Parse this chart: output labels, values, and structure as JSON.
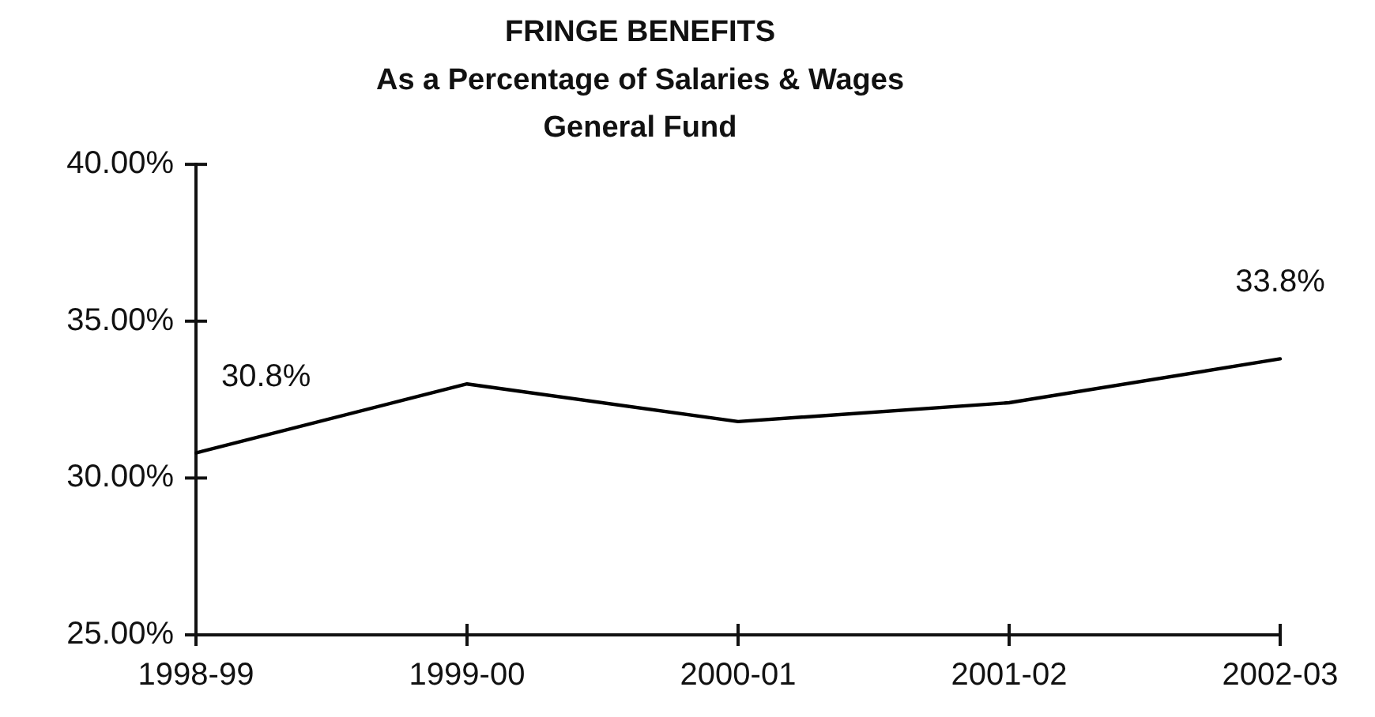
{
  "chart_data": {
    "type": "line",
    "title": "FRINGE BENEFITS\nAs a Percentage of Salaries & Wages\nGeneral Fund",
    "categories": [
      "1998-99",
      "1999-00",
      "2000-01",
      "2001-02",
      "2002-03"
    ],
    "values": [
      30.8,
      33.0,
      31.8,
      32.4,
      33.8
    ],
    "color": "#000000",
    "value_labels": [
      "30.8%",
      null,
      null,
      null,
      "33.8%"
    ],
    "ylim": [
      25,
      40
    ],
    "yticks": [
      {
        "value": 25,
        "label": "25.00%"
      },
      {
        "value": 30,
        "label": "30.00%"
      },
      {
        "value": 35,
        "label": "35.00%"
      },
      {
        "value": 40,
        "label": "40.00%"
      }
    ],
    "grid": false,
    "legend": false,
    "marker": "none",
    "line_style": "solid"
  }
}
